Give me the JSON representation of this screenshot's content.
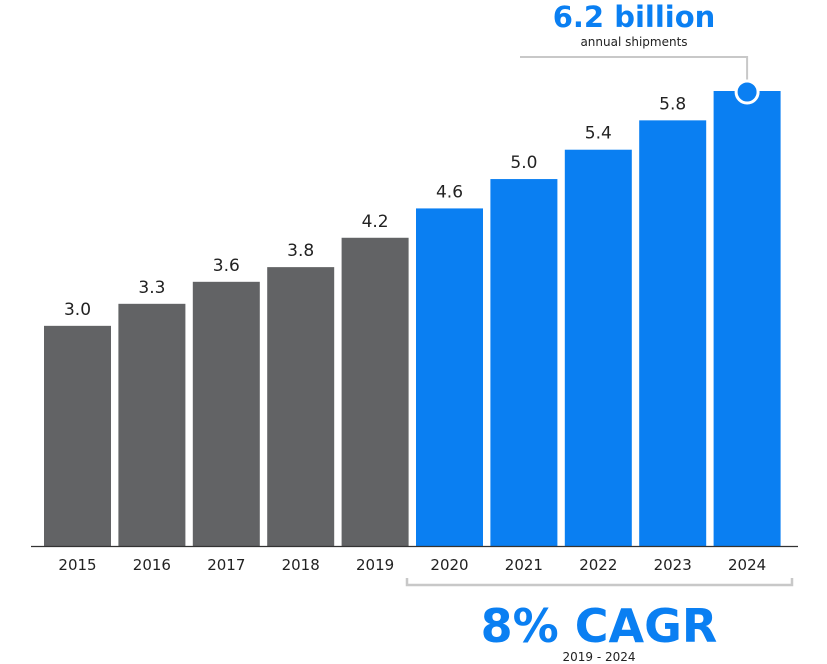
{
  "chart_data": {
    "type": "bar",
    "categories": [
      "2015",
      "2016",
      "2017",
      "2018",
      "2019",
      "2020",
      "2021",
      "2022",
      "2023",
      "2024"
    ],
    "values": [
      3.0,
      3.3,
      3.6,
      3.8,
      4.2,
      4.6,
      5.0,
      5.4,
      5.8,
      6.2
    ],
    "data_labels": [
      "3.0",
      "3.3",
      "3.6",
      "3.8",
      "4.2",
      "4.6",
      "5.0",
      "5.4",
      "5.8",
      ""
    ],
    "ylim": [
      0,
      6.2
    ],
    "grid": false,
    "legend": "none",
    "colors": {
      "historical": "#626365",
      "forecast": "#0a7ff2",
      "axis": "#333333",
      "bracket": "#c8c8c8",
      "text": "#222222",
      "accent": "#0a7ff2"
    },
    "highlight": {
      "value_label": "6.2 billion",
      "sub_label": "annual shipments"
    },
    "cagr": {
      "label": "8% CAGR",
      "period": "2019 - 2024"
    }
  }
}
